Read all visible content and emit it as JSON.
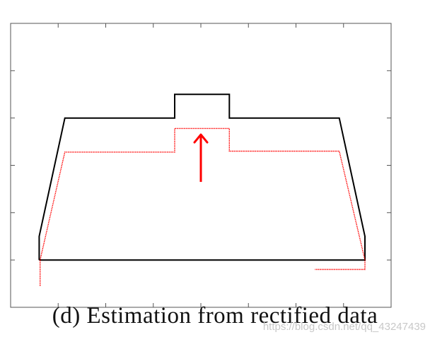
{
  "chart_data": {
    "type": "line",
    "title": "",
    "caption": "(d) Estimation from rectified data",
    "xlabel": "",
    "ylabel": "",
    "xlim": [
      0,
      8
    ],
    "ylim": [
      0,
      6
    ],
    "x_tick_count": 9,
    "y_tick_count": 7,
    "tick_labels_shown": false,
    "grid": false,
    "legend": "none",
    "series": [
      {
        "color": "#000000",
        "style": "solid",
        "x": [
          0.6,
          0.6,
          1.14,
          3.45,
          3.45,
          4.6,
          4.6,
          6.91,
          7.45,
          7.45,
          0.6
        ],
        "y": [
          1.0,
          1.5,
          4.0,
          4.0,
          4.5,
          4.5,
          4.0,
          4.0,
          1.5,
          1.0,
          1.0
        ]
      },
      {
        "color": "#ff0000",
        "style": "dotted",
        "x": [
          0.62,
          0.62,
          0.62,
          1.14,
          3.45,
          3.45,
          4.6,
          4.6,
          6.91,
          7.45,
          7.45,
          6.4
        ],
        "y": [
          0.45,
          1.0,
          1.0,
          3.28,
          3.28,
          3.78,
          3.78,
          3.3,
          3.3,
          1.0,
          0.8,
          0.8
        ]
      }
    ],
    "annotations": [
      {
        "type": "arrow",
        "color": "#ff0000",
        "direction": "up",
        "x": 4.0,
        "y_from": 2.65,
        "y_to": 3.65
      }
    ]
  },
  "watermark": "https://blog.csdn.net/qq_43247439"
}
